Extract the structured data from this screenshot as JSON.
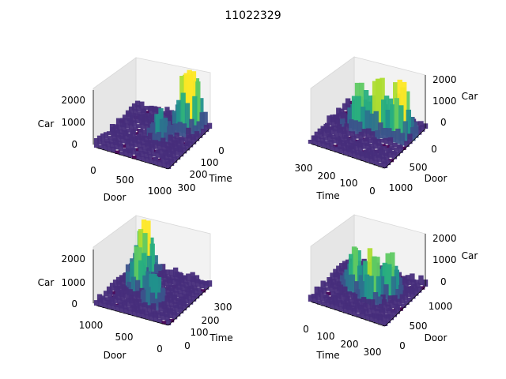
{
  "figure": {
    "title": "11022329"
  },
  "chart_data": [
    {
      "type": "surface3d",
      "id": "top-left",
      "xlabel": "Door",
      "ylabel": "Time",
      "zlabel": "Car",
      "x_range": [
        0,
        1000
      ],
      "y_range": [
        0,
        300
      ],
      "z_range": [
        0,
        2000
      ],
      "x_ticks": [
        "0",
        "500",
        "1000"
      ],
      "y_ticks": [
        "0",
        "100",
        "200",
        "300"
      ],
      "z_ticks": [
        "0",
        "1000",
        "2000"
      ],
      "colormap": "viridis",
      "peaks": [
        {
          "door": 800,
          "time": 280,
          "car": 2100
        },
        {
          "door": 760,
          "time": 250,
          "car": 1500
        },
        {
          "door": 600,
          "time": 150,
          "car": 900
        }
      ]
    },
    {
      "type": "surface3d",
      "id": "top-right",
      "xlabel": "Time",
      "ylabel": "Door",
      "zlabel": "Car",
      "x_range": [
        300,
        0
      ],
      "y_range": [
        0,
        1000
      ],
      "z_range": [
        0,
        2000
      ],
      "x_ticks": [
        "300",
        "200",
        "100",
        "0"
      ],
      "y_ticks": [
        "0",
        "500",
        "1000"
      ],
      "z_ticks": [
        "0",
        "1000",
        "2000"
      ],
      "colormap": "viridis",
      "peaks": [
        {
          "time": 250,
          "door": 700,
          "car": 2300
        },
        {
          "time": 170,
          "door": 650,
          "car": 2000
        },
        {
          "time": 100,
          "door": 600,
          "car": 1500
        }
      ]
    },
    {
      "type": "surface3d",
      "id": "bottom-left",
      "xlabel": "Door",
      "ylabel": "Time",
      "zlabel": "Car",
      "x_range": [
        1000,
        0
      ],
      "y_range": [
        0,
        300
      ],
      "z_range": [
        0,
        2000
      ],
      "x_ticks": [
        "1000",
        "500",
        "0"
      ],
      "y_ticks": [
        "0",
        "100",
        "200",
        "300"
      ],
      "z_ticks": [
        "0",
        "1000",
        "2000"
      ],
      "colormap": "viridis",
      "peaks": [
        {
          "door": 200,
          "time": 250,
          "car": 2400
        },
        {
          "door": 300,
          "time": 150,
          "car": 1600
        },
        {
          "door": 600,
          "time": 100,
          "car": 1100
        }
      ]
    },
    {
      "type": "surface3d",
      "id": "bottom-right",
      "xlabel": "Time",
      "ylabel": "Door",
      "zlabel": "Car",
      "x_range": [
        0,
        300
      ],
      "y_range": [
        0,
        1000
      ],
      "z_range": [
        0,
        2000
      ],
      "x_ticks": [
        "0",
        "100",
        "200",
        "300"
      ],
      "y_ticks": [
        "0",
        "500",
        "1000"
      ],
      "z_ticks": [
        "0",
        "1000",
        "2000"
      ],
      "colormap": "viridis",
      "peaks": [
        {
          "time": 180,
          "door": 400,
          "car": 1800
        },
        {
          "time": 100,
          "door": 500,
          "car": 1500
        },
        {
          "time": 220,
          "door": 600,
          "car": 1400
        }
      ]
    }
  ]
}
